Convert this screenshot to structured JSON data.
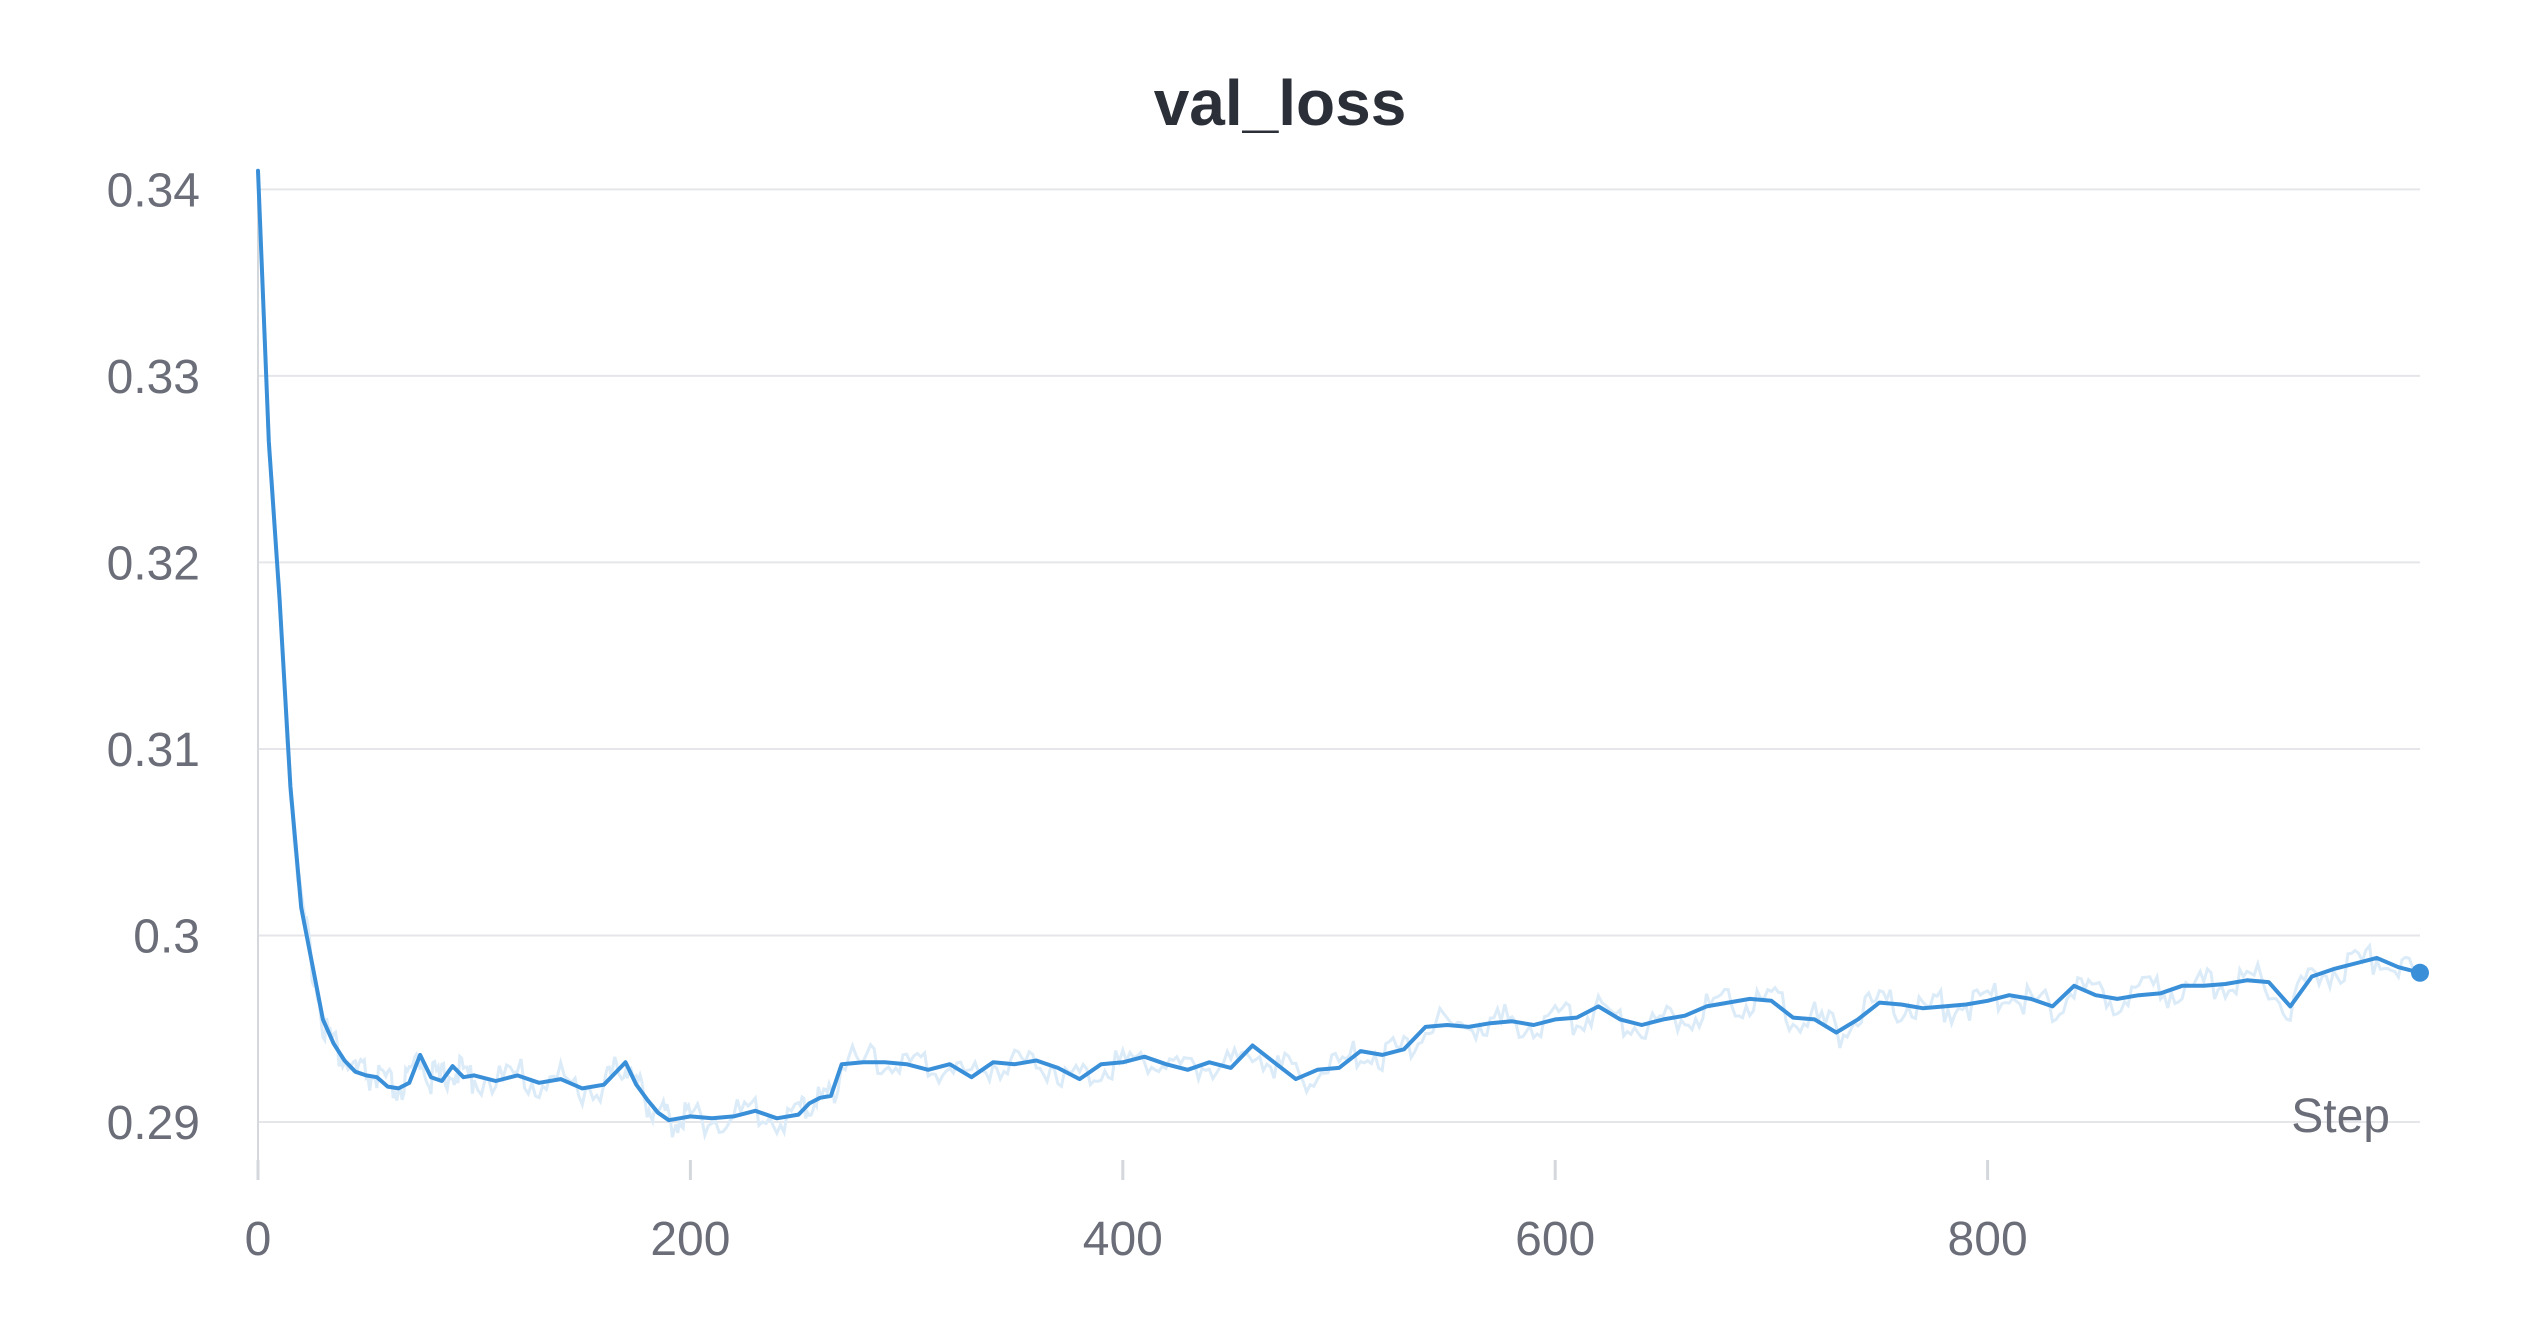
{
  "chart_data": {
    "type": "line",
    "title": "val_loss",
    "xlabel": "Step",
    "ylabel": "",
    "xlim": [
      0,
      1000
    ],
    "ylim": [
      0.2885,
      0.3405
    ],
    "x_ticks": [
      0,
      200,
      400,
      600,
      800
    ],
    "x_tick_labels": [
      "0",
      "200",
      "400",
      "600",
      "800"
    ],
    "y_ticks": [
      0.29,
      0.3,
      0.31,
      0.32,
      0.33,
      0.34
    ],
    "y_tick_labels": [
      "0.29",
      "0.3",
      "0.31",
      "0.32",
      "0.33",
      "0.34"
    ],
    "grid": true,
    "legend": "none",
    "colors": {
      "line": "#3a8fd9",
      "raw": "#dcebf8",
      "grid": "#e4e6ea",
      "text": "#6b6e78",
      "title": "#2b2f38"
    },
    "series": [
      {
        "x": [
          0,
          5,
          10,
          15,
          20,
          25,
          30,
          35,
          40,
          45,
          50,
          55,
          60,
          65,
          70,
          75,
          80,
          85,
          90,
          95,
          100,
          110,
          120,
          130,
          140,
          150,
          160,
          165,
          170,
          175,
          180,
          185,
          190,
          195,
          200,
          210,
          220,
          230,
          240,
          250,
          255,
          260,
          265,
          270,
          280,
          290,
          300,
          310,
          320,
          330,
          340,
          350,
          360,
          370,
          380,
          390,
          400,
          410,
          420,
          430,
          440,
          450,
          460,
          470,
          480,
          490,
          500,
          510,
          520,
          530,
          540,
          550,
          560,
          570,
          580,
          590,
          600,
          610,
          620,
          630,
          640,
          650,
          660,
          670,
          680,
          690,
          700,
          710,
          720,
          730,
          740,
          750,
          760,
          770,
          780,
          790,
          800,
          810,
          820,
          830,
          840,
          850,
          860,
          870,
          880,
          890,
          900,
          910,
          920,
          930,
          940,
          950,
          960,
          970,
          980,
          990,
          1000
        ],
        "values": [
          0.341,
          0.3265,
          0.318,
          0.308,
          0.3015,
          0.2985,
          0.2955,
          0.2942,
          0.2933,
          0.2927,
          0.2925,
          0.2924,
          0.2919,
          0.2918,
          0.2921,
          0.2936,
          0.2924,
          0.2922,
          0.293,
          0.2924,
          0.2925,
          0.2922,
          0.2925,
          0.2921,
          0.2923,
          0.2918,
          0.292,
          0.2926,
          0.2932,
          0.292,
          0.2912,
          0.2905,
          0.2901,
          0.2902,
          0.2903,
          0.2902,
          0.2903,
          0.2906,
          0.2902,
          0.2904,
          0.291,
          0.2913,
          0.2914,
          0.2931,
          0.2932,
          0.2932,
          0.2931,
          0.2928,
          0.2931,
          0.2924,
          0.2932,
          0.2931,
          0.2933,
          0.2929,
          0.2923,
          0.2931,
          0.2932,
          0.2935,
          0.2931,
          0.2928,
          0.2932,
          0.2929,
          0.2941,
          0.2932,
          0.2923,
          0.2928,
          0.2929,
          0.2938,
          0.2936,
          0.2939,
          0.2951,
          0.2952,
          0.2951,
          0.2953,
          0.2954,
          0.2952,
          0.2955,
          0.2956,
          0.2962,
          0.2955,
          0.2952,
          0.2955,
          0.2957,
          0.2962,
          0.2964,
          0.2966,
          0.2965,
          0.2956,
          0.2955,
          0.2948,
          0.2955,
          0.2964,
          0.2963,
          0.2961,
          0.2962,
          0.2963,
          0.2965,
          0.2968,
          0.2966,
          0.2962,
          0.2973,
          0.2968,
          0.2966,
          0.2968,
          0.2969,
          0.2973,
          0.2973,
          0.2974,
          0.2976,
          0.2975,
          0.2962,
          0.2978,
          0.2982,
          0.2985,
          0.2988,
          0.2983,
          0.298
        ]
      }
    ]
  }
}
